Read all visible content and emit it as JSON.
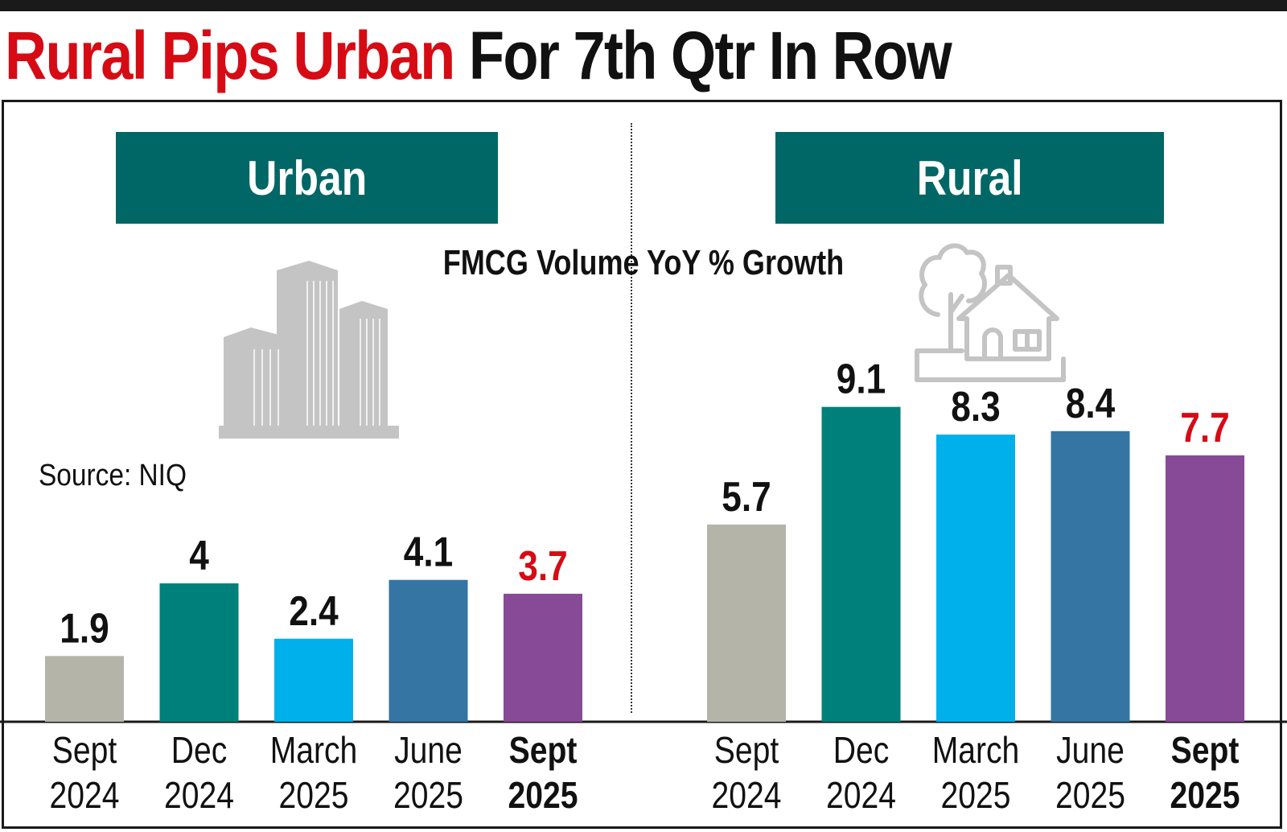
{
  "headline": {
    "red_part": "Rural Pips Urban",
    "black_part": "For 7th Qtr In Row"
  },
  "subtitle": "FMCG Volume YoY % Growth",
  "source": "Source: NIQ",
  "colors": {
    "title_box": "#006766",
    "highlight": "#d60b14",
    "bars": [
      "#b4b4a9",
      "#00807a",
      "#00b0ea",
      "#3475a3",
      "#874a97"
    ],
    "icon": "#c4c4c4"
  },
  "chart_data": [
    {
      "type": "bar",
      "title": "Urban",
      "ylabel": "FMCG Volume YoY % Growth",
      "categories": [
        [
          "Sept",
          "2024"
        ],
        [
          "Dec",
          "2024"
        ],
        [
          "March",
          "2025"
        ],
        [
          "June",
          "2025"
        ],
        [
          "Sept",
          "2025"
        ]
      ],
      "values": [
        1.9,
        4,
        2.4,
        4.1,
        3.7
      ],
      "value_labels": [
        "1.9",
        "4",
        "2.4",
        "4.1",
        "3.7"
      ],
      "highlight_index": 4,
      "icon": "city-buildings-icon"
    },
    {
      "type": "bar",
      "title": "Rural",
      "ylabel": "FMCG Volume YoY % Growth",
      "categories": [
        [
          "Sept",
          "2024"
        ],
        [
          "Dec",
          "2024"
        ],
        [
          "March",
          "2025"
        ],
        [
          "June",
          "2025"
        ],
        [
          "Sept",
          "2025"
        ]
      ],
      "values": [
        5.7,
        9.1,
        8.3,
        8.4,
        7.7
      ],
      "value_labels": [
        "5.7",
        "9.1",
        "8.3",
        "8.4",
        "7.7"
      ],
      "highlight_index": 4,
      "icon": "rural-house-icon"
    }
  ]
}
